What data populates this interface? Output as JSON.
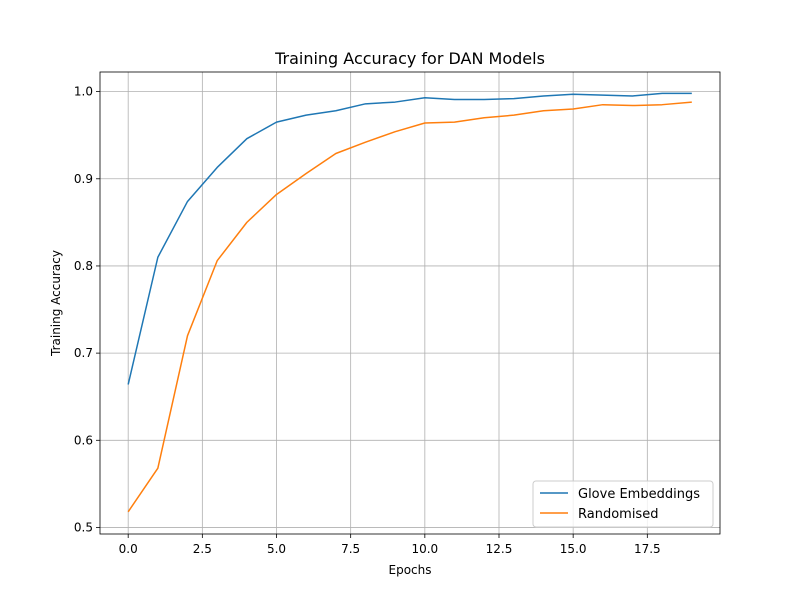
{
  "chart_data": {
    "type": "line",
    "title": "Training Accuracy for DAN Models",
    "xlabel": "Epochs",
    "ylabel": "Training Accuracy",
    "xlim": [
      -0.95,
      19.95
    ],
    "ylim": [
      0.4925,
      1.0225
    ],
    "xticks": [
      0,
      2.5,
      5,
      7.5,
      10,
      12.5,
      15,
      17.5
    ],
    "xtick_labels": [
      "0.0",
      "2.5",
      "5.0",
      "7.5",
      "10.0",
      "12.5",
      "15.0",
      "17.5"
    ],
    "yticks": [
      0.5,
      0.6,
      0.7,
      0.8,
      0.9,
      1.0
    ],
    "ytick_labels": [
      "0.5",
      "0.6",
      "0.7",
      "0.8",
      "0.9",
      "1.0"
    ],
    "grid": true,
    "legend_position": "bottom-right",
    "x": [
      0,
      1,
      2,
      3,
      4,
      5,
      6,
      7,
      8,
      9,
      10,
      11,
      12,
      13,
      14,
      15,
      16,
      17,
      18,
      19
    ],
    "series": [
      {
        "name": "Glove Embeddings",
        "color": "#1f77b4",
        "values": [
          0.664,
          0.81,
          0.874,
          0.913,
          0.946,
          0.965,
          0.973,
          0.978,
          0.986,
          0.988,
          0.993,
          0.991,
          0.991,
          0.992,
          0.995,
          0.997,
          0.996,
          0.995,
          0.998,
          0.998
        ]
      },
      {
        "name": "Randomised",
        "color": "#ff7f0e",
        "values": [
          0.518,
          0.568,
          0.72,
          0.806,
          0.85,
          0.882,
          0.906,
          0.929,
          0.942,
          0.954,
          0.964,
          0.965,
          0.97,
          0.973,
          0.978,
          0.98,
          0.985,
          0.984,
          0.985,
          0.988
        ]
      }
    ]
  }
}
